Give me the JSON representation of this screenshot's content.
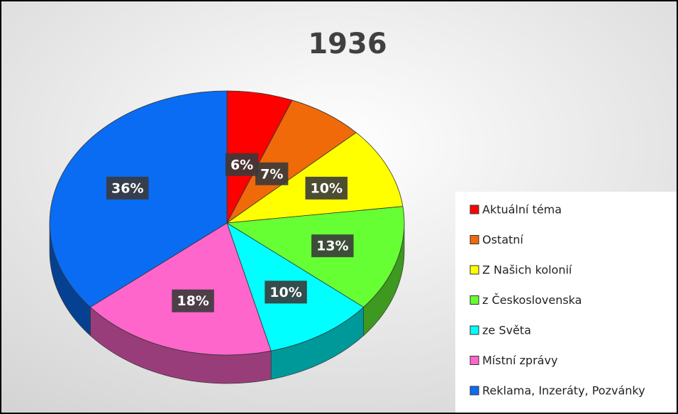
{
  "chart_data": {
    "type": "pie",
    "title": "1936",
    "categories": [
      "Aktuální téma",
      "Ostatní",
      "Z Našich kolonií",
      "z Československa",
      "ze Světa",
      "Místní zprávy",
      "Reklama, Inzeráty, Pozvánky"
    ],
    "values": [
      6,
      7,
      10,
      13,
      10,
      18,
      36
    ],
    "value_labels": [
      "6%",
      "7%",
      "10%",
      "13%",
      "10%",
      "18%",
      "36%"
    ],
    "colors": [
      "#ff0000",
      "#f06a0a",
      "#ffff00",
      "#66ff33",
      "#00ffff",
      "#ff66cc",
      "#0a6cf2"
    ],
    "legend": "right"
  }
}
